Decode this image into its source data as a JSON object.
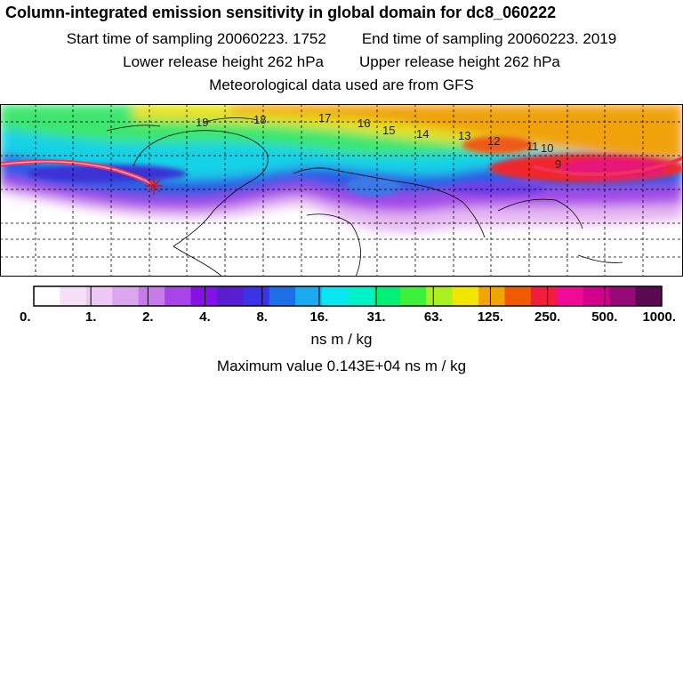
{
  "header": {
    "title": "Column-integrated emission sensitivity in global domain for dc8_060222",
    "start_time": "Start time of sampling 20060223.  1752",
    "end_time": "End time of sampling 20060223.  2019",
    "lower_height": "Lower release height  262 hPa",
    "upper_height": "Upper release height  262 hPa",
    "met_data": "Meteorological data used are from GFS"
  },
  "map": {
    "domain": "global",
    "release_marker_icon": "asterisk-icon",
    "trajectory_labels": [
      "19",
      "18",
      "17",
      "16",
      "15",
      "14",
      "13",
      "12",
      "11",
      "10",
      "9"
    ],
    "palette": [
      "#ffffff",
      "#f5e0f8",
      "#ecc8f2",
      "#dca6ee",
      "#c77be9",
      "#a845e8",
      "#8412e6",
      "#5a1ed0",
      "#3c32e6",
      "#1e6ee6",
      "#19aaf0",
      "#0ae6f0",
      "#00f2c8",
      "#00f078",
      "#3cf03c",
      "#aaf01e",
      "#f0e600",
      "#f0a500",
      "#f05a00",
      "#f01e3c",
      "#f00a96",
      "#d2008c",
      "#960a78",
      "#5a0a50"
    ]
  },
  "legend": {
    "tick_labels": [
      "0.",
      "1.",
      "2.",
      "4.",
      "8.",
      "16.",
      "31.",
      "63.",
      "125.",
      "250.",
      "500.",
      "1000."
    ],
    "units": "ns m / kg",
    "max_value": "Maximum value  0.143E+04 ns m / kg"
  }
}
